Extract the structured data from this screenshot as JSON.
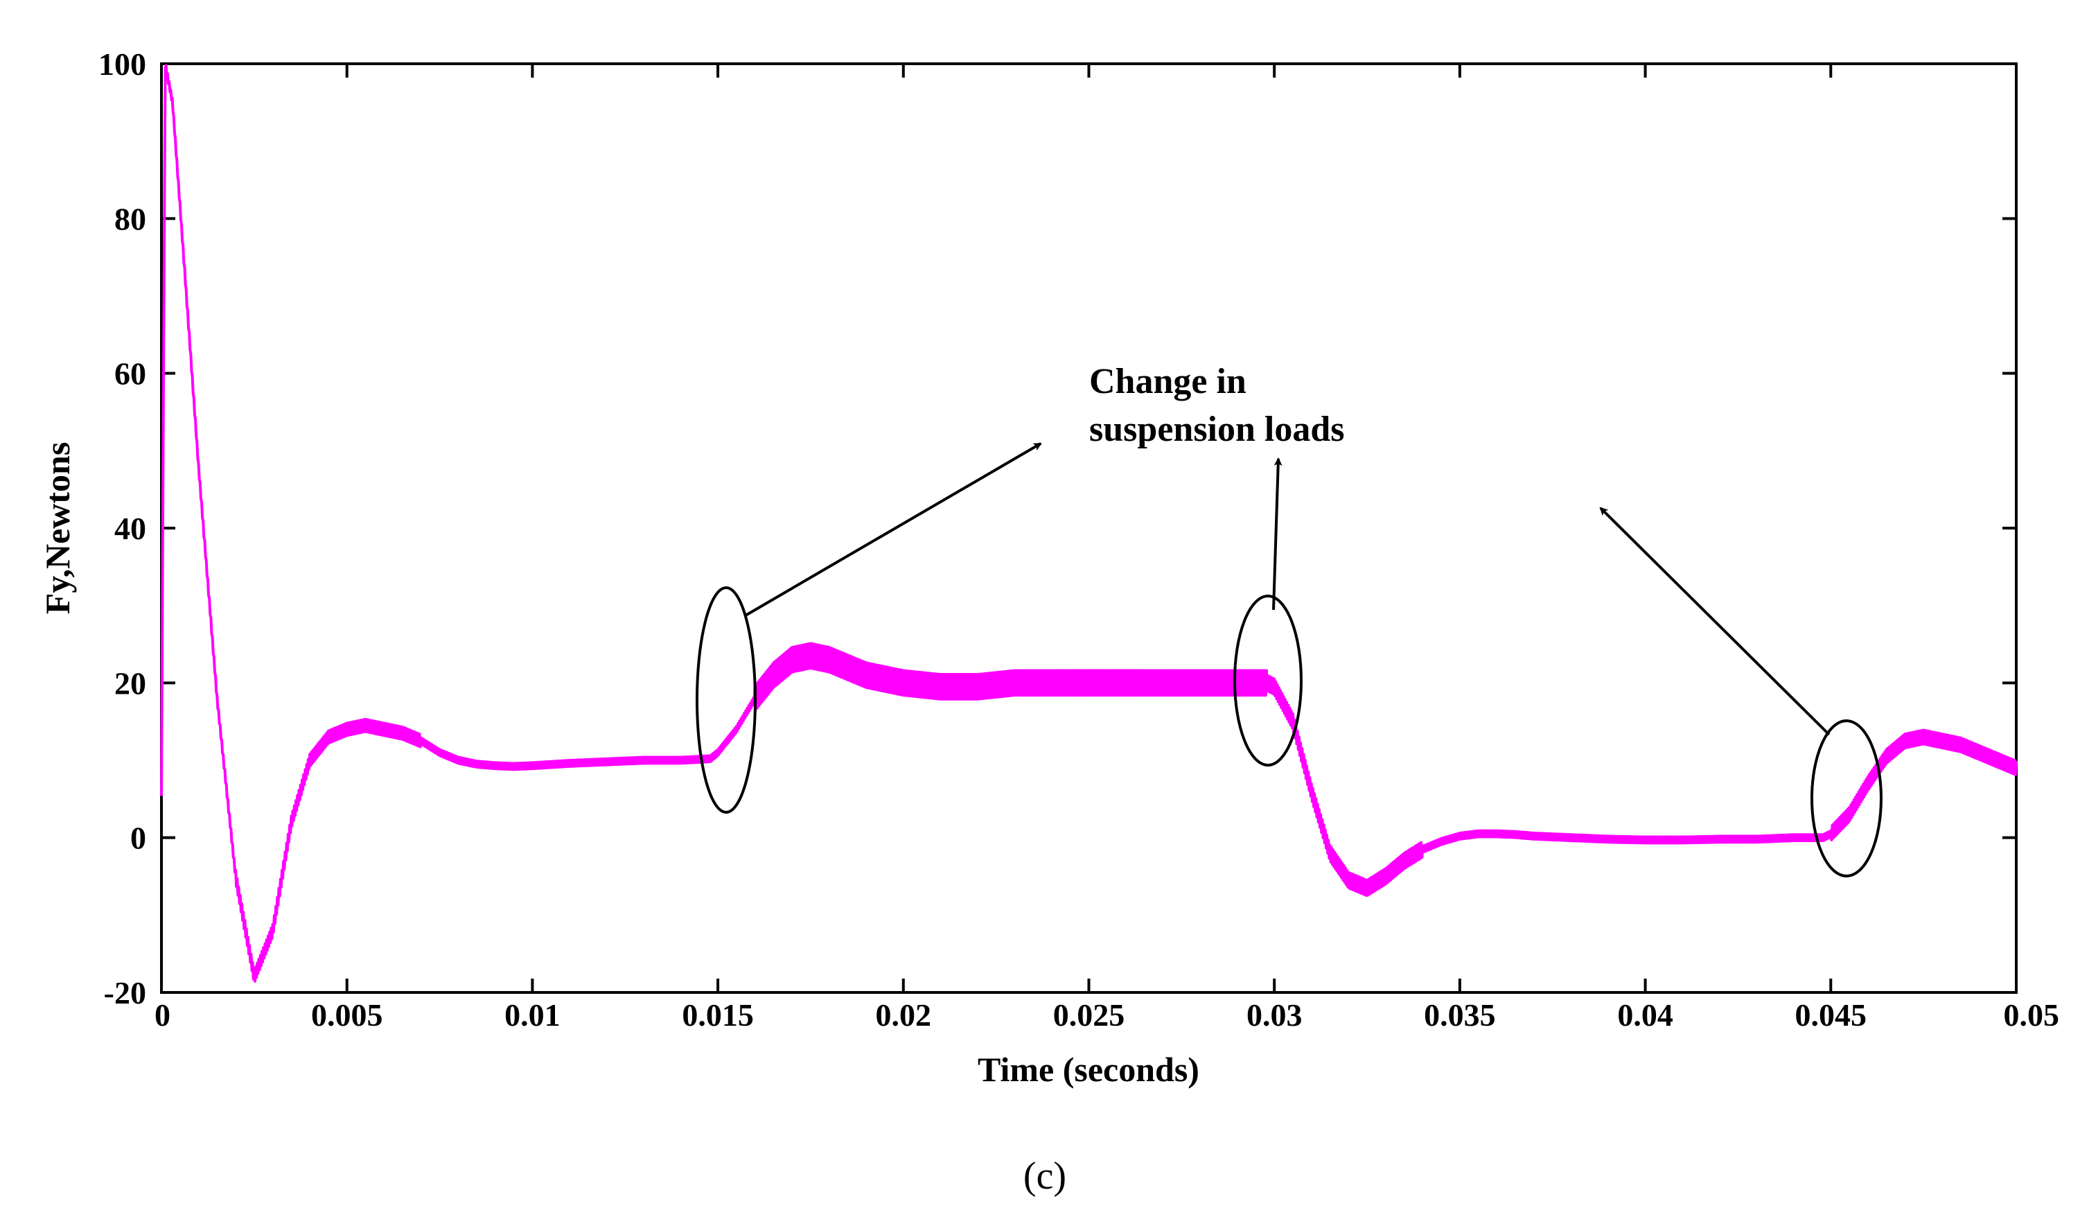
{
  "chart_data": {
    "type": "line",
    "title": "",
    "xlabel": "Time (seconds)",
    "ylabel": "Fy,Newtons",
    "xlim": [
      0,
      0.05
    ],
    "ylim": [
      -20,
      100
    ],
    "x_ticks": [
      0,
      0.005,
      0.01,
      0.015,
      0.02,
      0.025,
      0.03,
      0.035,
      0.04,
      0.045,
      0.05
    ],
    "x_tick_labels": [
      "0",
      "0.005",
      "0.01",
      "0.015",
      "0.02",
      "0.025",
      "0.03",
      "0.035",
      "0.04",
      "0.045",
      "0.05"
    ],
    "y_ticks": [
      -20,
      0,
      20,
      40,
      60,
      80,
      100
    ],
    "y_tick_labels": [
      "-20",
      "0",
      "20",
      "40",
      "60",
      "80",
      "100"
    ],
    "grid": false,
    "line_color": "#ff00ff",
    "series": [
      {
        "name": "Fy",
        "x": [
          0,
          0.0001,
          0.0003,
          0.0006,
          0.001,
          0.0015,
          0.002,
          0.0025,
          0.003,
          0.0035,
          0.004,
          0.0045,
          0.005,
          0.0055,
          0.006,
          0.0065,
          0.007,
          0.0075,
          0.008,
          0.0085,
          0.009,
          0.0095,
          0.01,
          0.011,
          0.012,
          0.013,
          0.014,
          0.0148,
          0.015,
          0.0155,
          0.016,
          0.0165,
          0.017,
          0.0175,
          0.018,
          0.0185,
          0.019,
          0.0195,
          0.02,
          0.021,
          0.022,
          0.023,
          0.024,
          0.025,
          0.026,
          0.027,
          0.028,
          0.029,
          0.0298,
          0.03,
          0.0305,
          0.031,
          0.0315,
          0.032,
          0.0325,
          0.033,
          0.0335,
          0.034,
          0.0345,
          0.035,
          0.0355,
          0.036,
          0.0365,
          0.037,
          0.038,
          0.039,
          0.04,
          0.041,
          0.042,
          0.043,
          0.044,
          0.0448,
          0.045,
          0.0455,
          0.046,
          0.0465,
          0.047,
          0.0475,
          0.048,
          0.0485,
          0.049,
          0.0495,
          0.05
        ],
        "values": [
          5,
          100,
          95,
          75,
          48,
          18,
          -5,
          -18,
          -12,
          2,
          10,
          13,
          14,
          14.5,
          14,
          13.5,
          12.5,
          11,
          10,
          9.5,
          9.3,
          9.2,
          9.3,
          9.6,
          9.8,
          10,
          10,
          10.2,
          11,
          14,
          18,
          21,
          23,
          23.5,
          23,
          22,
          21,
          20.5,
          20,
          19.5,
          19.5,
          20,
          20,
          20,
          20,
          20,
          20,
          20,
          20,
          19.5,
          15,
          6,
          -2,
          -5.5,
          -6.5,
          -5,
          -3,
          -1.5,
          -0.5,
          0.2,
          0.5,
          0.5,
          0.4,
          0.2,
          0,
          -0.2,
          -0.3,
          -0.3,
          -0.2,
          -0.2,
          0,
          0,
          0.5,
          3,
          7,
          10.5,
          12.5,
          13,
          12.5,
          12,
          11,
          10,
          9
        ]
      }
    ],
    "annotations": [
      {
        "text_line1": "Change in",
        "text_line2": "suspension loads"
      }
    ],
    "caption": "(c)"
  }
}
